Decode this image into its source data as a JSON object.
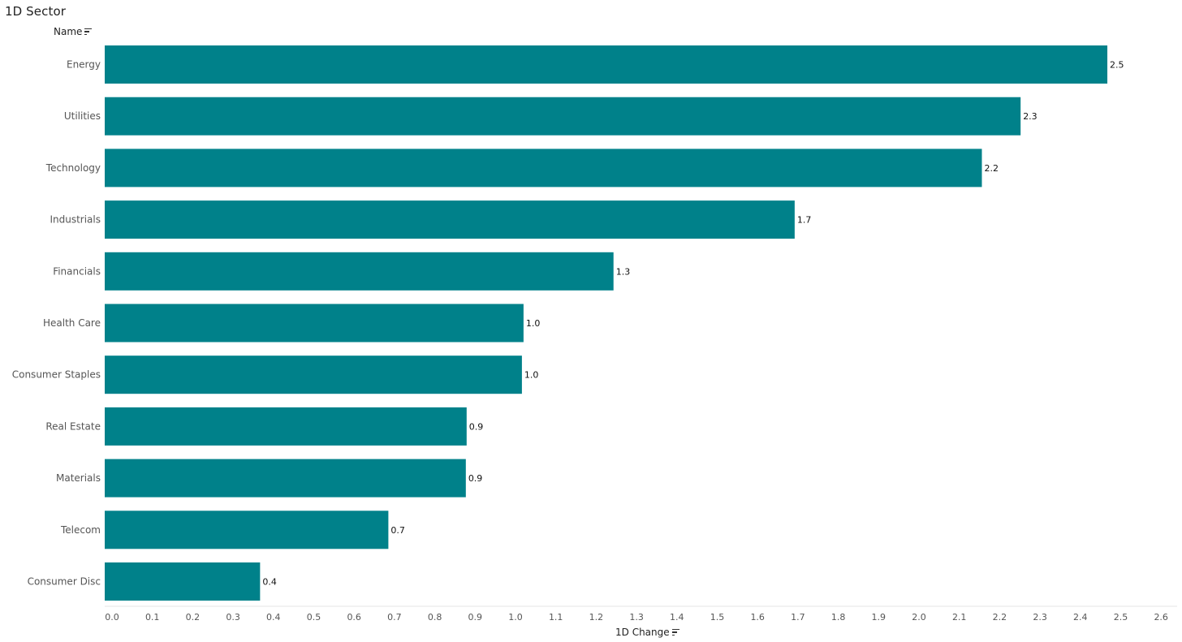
{
  "title": "1D Sector",
  "y_column_header": "Name",
  "x_column_header": "1D Change",
  "colors": {
    "bar": "#00818a",
    "axis_line": "#e6e6e6",
    "label_text": "#555555",
    "value_text": "#111111"
  },
  "icons": {
    "sort": "sort-descending-icon"
  },
  "chart_data": {
    "type": "bar",
    "orientation": "horizontal",
    "categories": [
      "Energy",
      "Utilities",
      "Technology",
      "Industrials",
      "Financials",
      "Health Care",
      "Consumer Staples",
      "Real Estate",
      "Materials",
      "Telecom",
      "Consumer Disc"
    ],
    "values": [
      2.485,
      2.27,
      2.174,
      1.71,
      1.261,
      1.038,
      1.034,
      0.897,
      0.895,
      0.703,
      0.385
    ],
    "value_labels": [
      "2.5",
      "2.3",
      "2.2",
      "1.7",
      "1.3",
      "1.0",
      "1.0",
      "0.9",
      "0.9",
      "0.7",
      "0.4"
    ],
    "xlim": [
      0,
      2.6
    ],
    "x_ticks": [
      "0.0",
      "0.1",
      "0.2",
      "0.3",
      "0.4",
      "0.5",
      "0.6",
      "0.7",
      "0.8",
      "0.9",
      "1.0",
      "1.1",
      "1.2",
      "1.3",
      "1.4",
      "1.5",
      "1.6",
      "1.7",
      "1.8",
      "1.9",
      "2.0",
      "2.1",
      "2.2",
      "2.3",
      "2.4",
      "2.5",
      "2.6"
    ],
    "xlabel": "1D Change",
    "ylabel": "Name",
    "grid": false,
    "legend": "none"
  }
}
